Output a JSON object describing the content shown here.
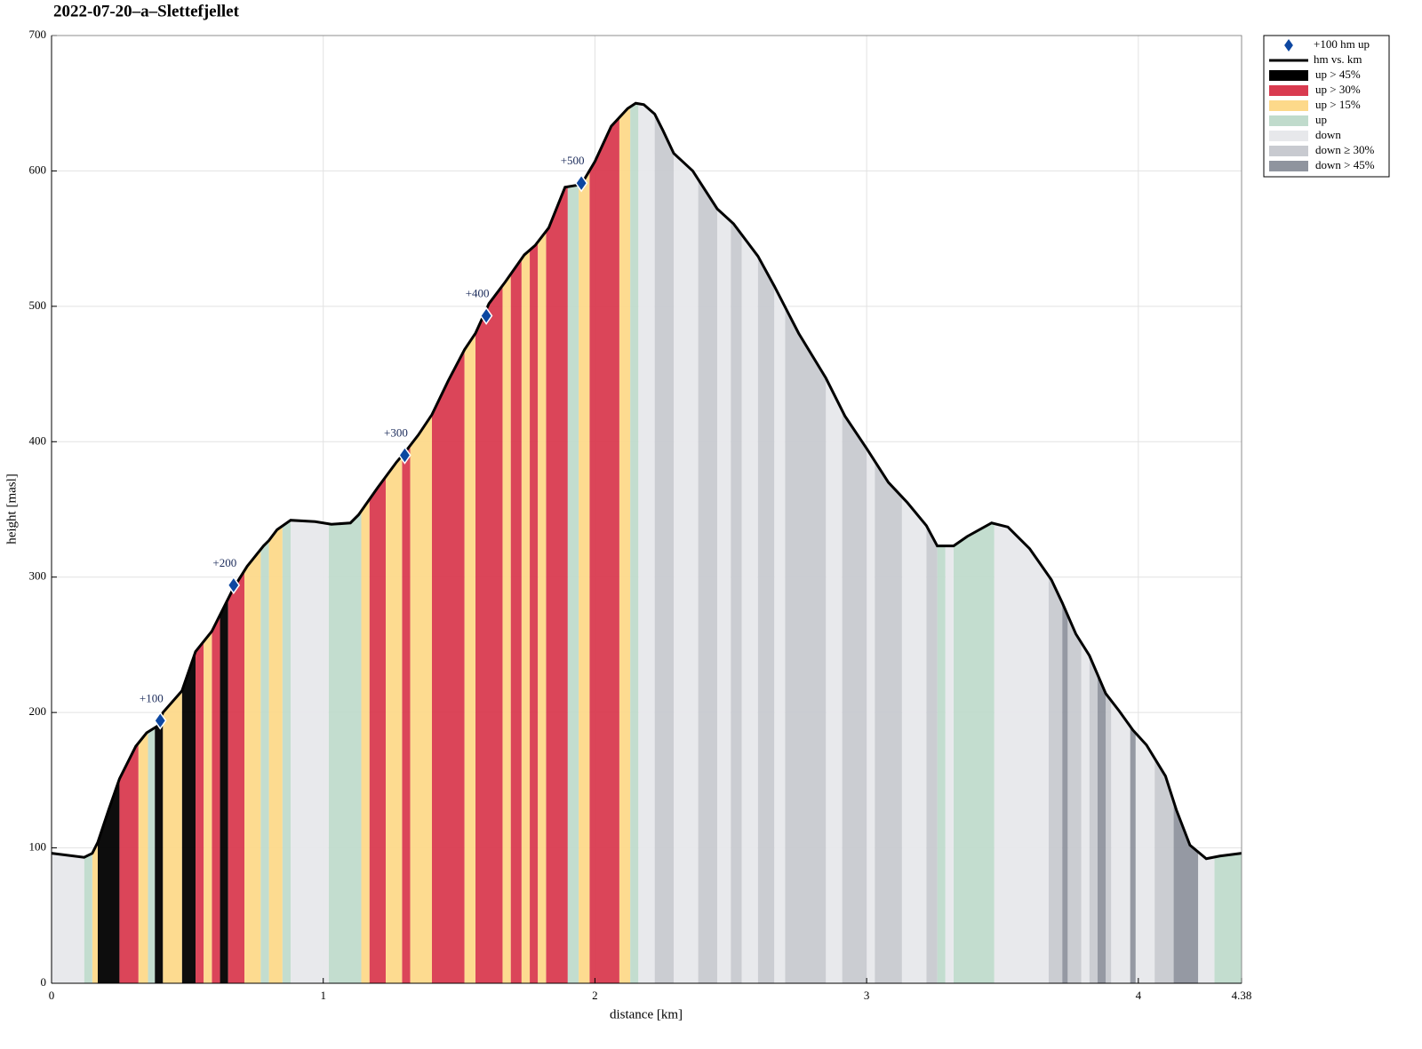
{
  "chart_data": {
    "type": "elevation-profile",
    "title": "2022-07-20–a–Slettefjellet",
    "xlabel": "distance [km]",
    "ylabel": "height [masl]",
    "xlim": [
      0,
      4.38
    ],
    "ylim": [
      0,
      700
    ],
    "xticks": [
      0,
      1,
      2,
      3,
      4,
      4.38
    ],
    "yticks": [
      0,
      100,
      200,
      300,
      400,
      500,
      600,
      700
    ],
    "grid": true,
    "legend": "outside-top-right",
    "markers": {
      "name": "+100 hm up",
      "color": "#0d47a1",
      "x": [
        0.4,
        0.67,
        1.3,
        1.6,
        1.95
      ],
      "values": [
        194,
        294,
        390,
        493,
        591
      ],
      "labels": [
        "+100",
        "+200",
        "+300",
        "+400",
        "+500"
      ]
    },
    "profile": {
      "name": "hm vs. km",
      "color": "#000000",
      "x": [
        0,
        0.12,
        0.15,
        0.17,
        0.21,
        0.25,
        0.31,
        0.35,
        0.39,
        0.41,
        0.48,
        0.53,
        0.59,
        0.64,
        0.67,
        0.72,
        0.78,
        0.8,
        0.83,
        0.88,
        0.97,
        1.03,
        1.1,
        1.13,
        1.2,
        1.27,
        1.3,
        1.35,
        1.4,
        1.46,
        1.52,
        1.56,
        1.61,
        1.67,
        1.74,
        1.78,
        1.83,
        1.89,
        1.95,
        2.0,
        2.06,
        2.12,
        2.15,
        2.18,
        2.22,
        2.25,
        2.29,
        2.36,
        2.45,
        2.51,
        2.6,
        2.66,
        2.75,
        2.85,
        2.92,
        3.0,
        3.08,
        3.15,
        3.22,
        3.26,
        3.32,
        3.37,
        3.46,
        3.52,
        3.6,
        3.68,
        3.72,
        3.77,
        3.82,
        3.88,
        3.93,
        3.98,
        4.03,
        4.1,
        4.14,
        4.19,
        4.25,
        4.3,
        4.38
      ],
      "values": [
        96,
        93,
        96,
        104,
        128,
        151,
        175,
        185,
        190,
        200,
        216,
        245,
        260,
        280,
        292,
        308,
        323,
        327,
        335,
        342,
        341,
        339,
        340,
        346,
        366,
        385,
        392,
        405,
        420,
        445,
        468,
        480,
        502,
        518,
        538,
        545,
        558,
        588,
        590,
        607,
        633,
        646,
        650,
        649,
        642,
        630,
        613,
        600,
        572,
        561,
        537,
        515,
        480,
        447,
        419,
        395,
        370,
        355,
        338,
        323,
        323,
        330,
        340,
        337,
        321,
        298,
        281,
        258,
        242,
        214,
        201,
        187,
        176,
        153,
        128,
        102,
        92,
        94,
        96
      ]
    },
    "bands": [
      {
        "name": "up > 45%",
        "color": "#000000",
        "ranges": [
          [
            0.17,
            0.25
          ],
          [
            0.38,
            0.41
          ],
          [
            0.48,
            0.53
          ],
          [
            0.62,
            0.65
          ]
        ]
      },
      {
        "name": "up > 30%",
        "color": "#d93b50",
        "ranges": [
          [
            0.25,
            0.32
          ],
          [
            0.53,
            0.56
          ],
          [
            0.59,
            0.62
          ],
          [
            0.65,
            0.71
          ],
          [
            1.17,
            1.23
          ],
          [
            1.29,
            1.32
          ],
          [
            1.4,
            1.52
          ],
          [
            1.56,
            1.66
          ],
          [
            1.69,
            1.73
          ],
          [
            1.76,
            1.79
          ],
          [
            1.82,
            1.9
          ],
          [
            1.98,
            2.09
          ]
        ]
      },
      {
        "name": "up > 15%",
        "color": "#fdd98a",
        "ranges": [
          [
            0.15,
            0.17
          ],
          [
            0.32,
            0.355
          ],
          [
            0.41,
            0.48
          ],
          [
            0.56,
            0.59
          ],
          [
            0.71,
            0.77
          ],
          [
            0.8,
            0.85
          ],
          [
            1.14,
            1.17
          ],
          [
            1.23,
            1.29
          ],
          [
            1.32,
            1.4
          ],
          [
            1.52,
            1.56
          ],
          [
            1.66,
            1.69
          ],
          [
            1.73,
            1.76
          ],
          [
            1.79,
            1.82
          ],
          [
            1.94,
            1.98
          ],
          [
            2.09,
            2.13
          ]
        ]
      },
      {
        "name": "up",
        "color": "#c0dbcc",
        "ranges": [
          [
            0.12,
            0.15
          ],
          [
            0.355,
            0.38
          ],
          [
            0.77,
            0.8
          ],
          [
            0.85,
            0.88
          ],
          [
            1.02,
            1.14
          ],
          [
            1.9,
            1.94
          ],
          [
            2.13,
            2.16
          ],
          [
            3.26,
            3.29
          ],
          [
            3.32,
            3.47
          ],
          [
            4.28,
            4.38
          ]
        ]
      },
      {
        "name": "down",
        "color": "#e7e8eb",
        "ranges": [
          [
            0,
            0.12
          ],
          [
            0.88,
            1.02
          ],
          [
            2.16,
            2.22
          ],
          [
            2.29,
            2.38
          ],
          [
            2.45,
            2.5
          ],
          [
            2.54,
            2.6
          ],
          [
            2.66,
            2.7
          ],
          [
            2.85,
            2.91
          ],
          [
            3.0,
            3.03
          ],
          [
            3.13,
            3.22
          ],
          [
            3.29,
            3.32
          ],
          [
            3.47,
            3.67
          ],
          [
            3.79,
            3.82
          ],
          [
            3.9,
            3.97
          ],
          [
            3.99,
            4.06
          ],
          [
            4.22,
            4.28
          ]
        ]
      },
      {
        "name": "down ≥ 30%",
        "color": "#c8cad0",
        "ranges": [
          [
            2.22,
            2.29
          ],
          [
            2.38,
            2.45
          ],
          [
            2.5,
            2.54
          ],
          [
            2.6,
            2.66
          ],
          [
            2.7,
            2.85
          ],
          [
            2.91,
            3.0
          ],
          [
            3.03,
            3.13
          ],
          [
            3.22,
            3.26
          ],
          [
            3.67,
            3.72
          ],
          [
            3.74,
            3.79
          ],
          [
            3.82,
            3.85
          ],
          [
            3.88,
            3.9
          ],
          [
            4.06,
            4.13
          ]
        ]
      },
      {
        "name": "down > 45%",
        "color": "#8f949e",
        "ranges": [
          [
            3.72,
            3.74
          ],
          [
            3.85,
            3.88
          ],
          [
            3.97,
            3.99
          ],
          [
            4.13,
            4.22
          ]
        ]
      }
    ]
  }
}
